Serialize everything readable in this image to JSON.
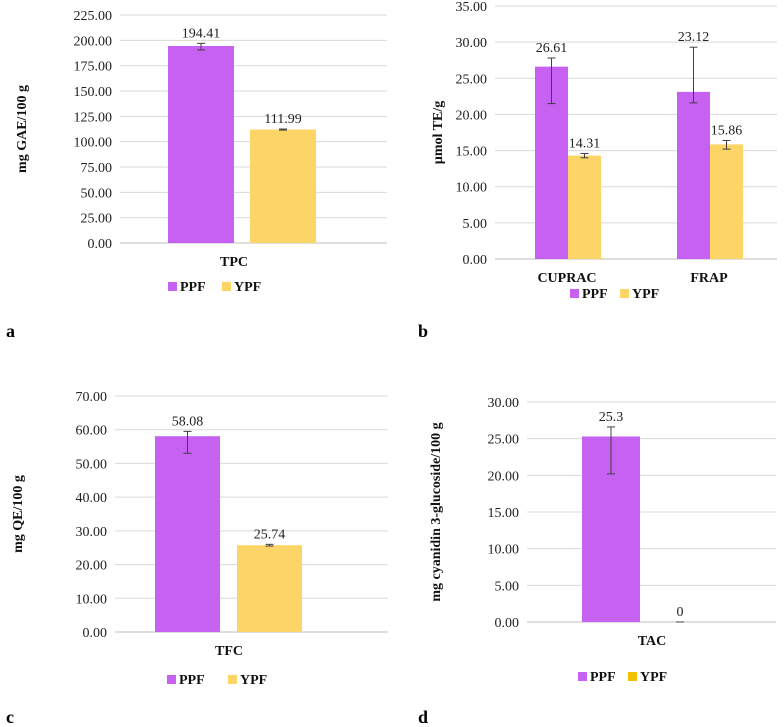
{
  "colors": {
    "ppf": "#c661f2",
    "ypf": "#fdd566",
    "ypf_legend_d": "#f5c000",
    "grid": "#d9d9d9",
    "axis": "#bfbfbf",
    "error": "#404040"
  },
  "chart_data": [
    {
      "id": "a",
      "type": "bar",
      "panel_label": "a",
      "ylabel": "mg GAE/100 g",
      "ylim": [
        0,
        225
      ],
      "ytick_step": 25,
      "ytick_labels": [
        "0.00",
        "25.00",
        "50.00",
        "75.00",
        "100.00",
        "125.00",
        "150.00",
        "175.00",
        "200.00",
        "225.00"
      ],
      "categories": [
        "TPC"
      ],
      "series": [
        {
          "name": "PPF",
          "values": [
            194.41
          ],
          "labels": [
            "194.41"
          ],
          "errors": [
            [
              190.5,
              197.0
            ]
          ]
        },
        {
          "name": "YPF",
          "values": [
            111.99
          ],
          "labels": [
            "111.99"
          ],
          "errors": [
            [
              111.4,
              112.5
            ]
          ]
        }
      ],
      "legend": [
        "PPF",
        "YPF"
      ]
    },
    {
      "id": "b",
      "type": "bar",
      "panel_label": "b",
      "ylabel": "µmol TE/g",
      "ylim": [
        0,
        35
      ],
      "ytick_step": 5,
      "ytick_labels": [
        "0.00",
        "5.00",
        "10.00",
        "15.00",
        "20.00",
        "25.00",
        "30.00",
        "35.00"
      ],
      "categories": [
        "CUPRAC",
        "FRAP"
      ],
      "series": [
        {
          "name": "PPF",
          "values": [
            26.61,
            23.12
          ],
          "labels": [
            "26.61",
            "23.12"
          ],
          "errors": [
            [
              21.5,
              27.8
            ],
            [
              21.6,
              29.3
            ]
          ]
        },
        {
          "name": "YPF",
          "values": [
            14.31,
            15.86
          ],
          "labels": [
            "14.31",
            "15.86"
          ],
          "errors": [
            [
              14.0,
              14.6
            ],
            [
              15.2,
              16.4
            ]
          ]
        }
      ],
      "legend": [
        "PPF",
        "YPF"
      ]
    },
    {
      "id": "c",
      "type": "bar",
      "panel_label": "c",
      "ylabel": "mg QE/100 g",
      "ylim": [
        0,
        70
      ],
      "ytick_step": 10,
      "ytick_labels": [
        "0.00",
        "10.00",
        "20.00",
        "30.00",
        "40.00",
        "50.00",
        "60.00",
        "70.00"
      ],
      "categories": [
        "TFC"
      ],
      "series": [
        {
          "name": "PPF",
          "values": [
            58.08
          ],
          "labels": [
            "58.08"
          ],
          "errors": [
            [
              53.0,
              59.5
            ]
          ]
        },
        {
          "name": "YPF",
          "values": [
            25.74
          ],
          "labels": [
            "25.74"
          ],
          "errors": [
            [
              25.5,
              26.0
            ]
          ]
        }
      ],
      "legend": [
        "PPF",
        "YPF"
      ]
    },
    {
      "id": "d",
      "type": "bar",
      "panel_label": "d",
      "ylabel": "mg cyanidin 3-glucoside/100 g",
      "ylim": [
        0,
        30
      ],
      "ytick_step": 5,
      "ytick_labels": [
        "0.00",
        "5.00",
        "10.00",
        "15.00",
        "20.00",
        "25.00",
        "30.00"
      ],
      "categories": [
        "TAC"
      ],
      "series": [
        {
          "name": "PPF",
          "values": [
            25.3
          ],
          "labels": [
            "25.3"
          ],
          "errors": [
            [
              20.2,
              26.6
            ]
          ]
        },
        {
          "name": "YPF",
          "values": [
            0
          ],
          "labels": [
            "0"
          ],
          "errors": [
            [
              0,
              0
            ]
          ]
        }
      ],
      "legend": [
        "PPF",
        "YPF"
      ]
    }
  ]
}
